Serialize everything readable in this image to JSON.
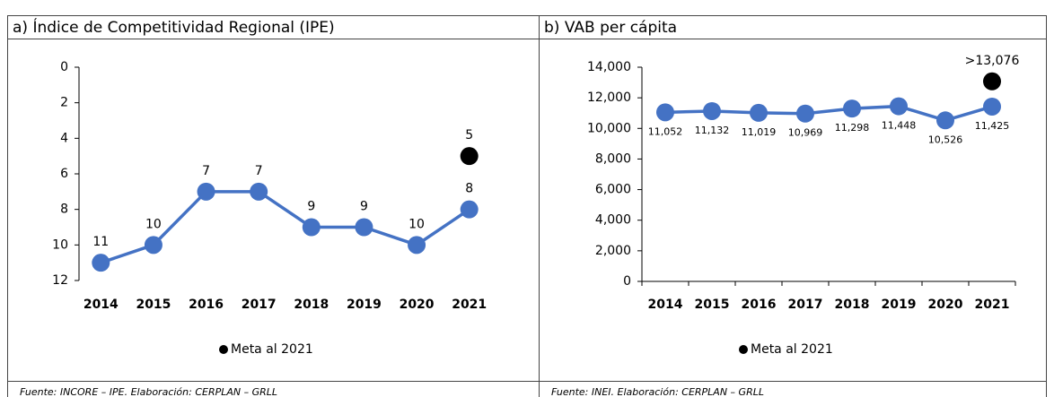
{
  "chart_data": [
    {
      "type": "line",
      "title": "a) Índice de Competitividad Regional (IPE)",
      "categories": [
        "2014",
        "2015",
        "2016",
        "2017",
        "2018",
        "2019",
        "2020",
        "2021"
      ],
      "series": [
        {
          "color": "#4472c4",
          "values": [
            11,
            10,
            7,
            7,
            9,
            9,
            10,
            8
          ]
        },
        {
          "name": "Meta al 2021",
          "color": "#000000",
          "values": [
            null,
            null,
            null,
            null,
            null,
            null,
            null,
            5
          ]
        }
      ],
      "ylim": [
        0,
        12
      ],
      "yticks": [
        0,
        2,
        4,
        6,
        8,
        10,
        12
      ],
      "y_inverted": true,
      "source": "Fuente: INCORE – IPE. Elaboración: CERPLAN – GRLL"
    },
    {
      "type": "line",
      "title": "b) VAB per cápita",
      "categories": [
        "2014",
        "2015",
        "2016",
        "2017",
        "2018",
        "2019",
        "2020",
        "2021"
      ],
      "series": [
        {
          "color": "#4472c4",
          "values": [
            11052,
            11132,
            11019,
            10969,
            11298,
            11448,
            10526,
            11425
          ],
          "value_labels": [
            "11,052",
            "11,132",
            "11,019",
            "10,969",
            "11,298",
            "11,448",
            "10,526",
            "11,425"
          ]
        },
        {
          "name": "Meta al 2021",
          "color": "#000000",
          "values": [
            null,
            null,
            null,
            null,
            null,
            null,
            null,
            13076
          ],
          "value_labels": [
            null,
            null,
            null,
            null,
            null,
            null,
            null,
            ">13,076"
          ]
        }
      ],
      "ylim": [
        0,
        14000
      ],
      "yticks": [
        0,
        {
          "value": 2000,
          "label": "2,000"
        },
        {
          "value": 4000,
          "label": "4,000"
        },
        {
          "value": 6000,
          "label": "6,000"
        },
        {
          "value": 8000,
          "label": "8,000"
        },
        {
          "value": 10000,
          "label": "10,000"
        },
        {
          "value": 12000,
          "label": "12,000"
        },
        {
          "value": 14000,
          "label": "14,000"
        }
      ],
      "y_inverted": false,
      "source": "Fuente: INEI. Elaboración: CERPLAN – GRLL"
    }
  ]
}
